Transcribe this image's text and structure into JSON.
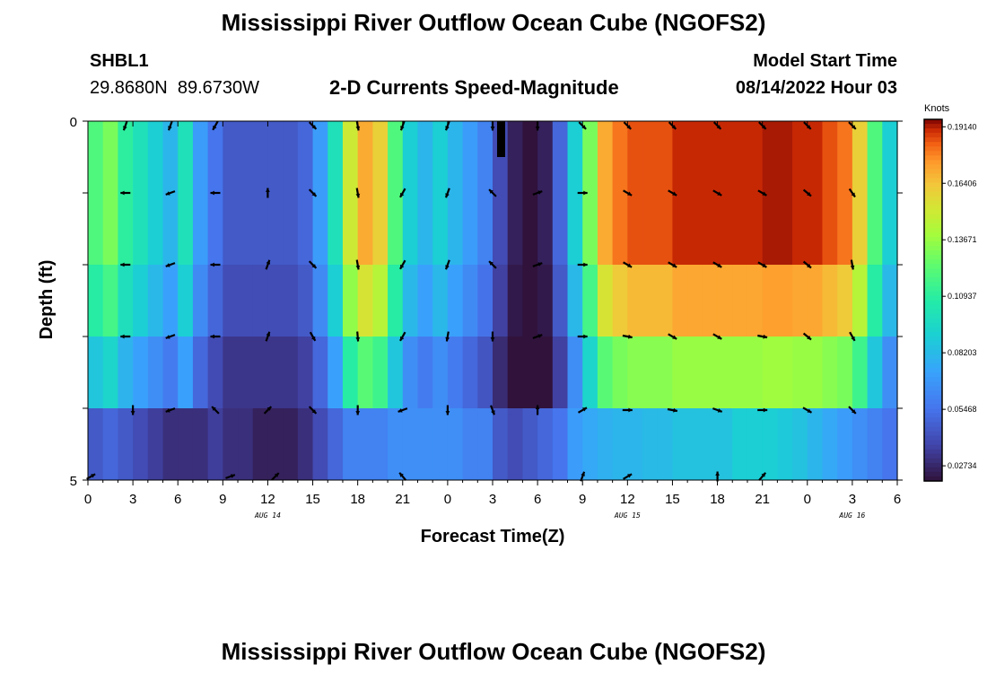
{
  "header": {
    "title": "Mississippi River Outflow Ocean Cube (NGOFS2)",
    "station_id": "SHBL1",
    "station_coords": "29.8680N  89.6730W",
    "subtitle": "2-D Currents Speed-Magnitude",
    "model_start_label": "Model Start Time",
    "model_start_value": "08/14/2022 Hour 03"
  },
  "footer": {
    "title_repeat": "Mississippi River Outflow Ocean Cube (NGOFS2)"
  },
  "chart_data": {
    "type": "heatmap",
    "title": "2-D Currents Speed-Magnitude",
    "xlabel": "Forecast Time(Z)",
    "ylabel": "Depth (ft)",
    "x_tick_labels": [
      "0",
      "3",
      "6",
      "9",
      "12",
      "15",
      "18",
      "21",
      "0",
      "3",
      "6",
      "9",
      "12",
      "15",
      "18",
      "21",
      "0",
      "3",
      "6"
    ],
    "x_range_hours": [
      0,
      54
    ],
    "date_labels": [
      {
        "text": "AUG 14",
        "hour": 12
      },
      {
        "text": "AUG 15",
        "hour": 36
      },
      {
        "text": "AUG 16",
        "hour": 51
      }
    ],
    "y_tick_labels": [
      "0",
      "5"
    ],
    "y_range": [
      0,
      5
    ],
    "layers": 5,
    "colorbar": {
      "unit": "Knots",
      "min": 0.02,
      "max": 0.195,
      "tick_labels": [
        "0.19140",
        "0.16406",
        "0.13671",
        "0.10937",
        "0.08203",
        "0.05468",
        "0.02734"
      ],
      "tick_values": [
        0.1914,
        0.16406,
        0.13671,
        0.10937,
        0.08203,
        0.05468,
        0.02734
      ]
    },
    "speed_profile": {
      "hours": [
        0,
        1,
        2,
        3,
        4,
        5,
        6,
        7,
        8,
        9,
        10,
        11,
        12,
        13,
        14,
        15,
        16,
        17,
        18,
        19,
        20,
        21,
        22,
        23,
        24,
        25,
        26,
        27,
        28,
        29,
        30,
        31,
        32,
        33,
        34,
        35,
        36,
        37,
        38,
        39,
        40,
        41,
        42,
        43,
        44,
        45,
        46,
        47,
        48,
        49,
        50,
        51,
        52,
        53,
        54
      ],
      "top": [
        0.12,
        0.13,
        0.11,
        0.1,
        0.09,
        0.08,
        0.1,
        0.07,
        0.055,
        0.045,
        0.045,
        0.045,
        0.045,
        0.045,
        0.05,
        0.07,
        0.1,
        0.15,
        0.17,
        0.16,
        0.12,
        0.09,
        0.08,
        0.09,
        0.08,
        0.07,
        0.06,
        0.04,
        0.025,
        0.02,
        0.025,
        0.05,
        0.09,
        0.13,
        0.17,
        0.18,
        0.185,
        0.185,
        0.185,
        0.19,
        0.19,
        0.19,
        0.19,
        0.19,
        0.19,
        0.192,
        0.192,
        0.19,
        0.19,
        0.185,
        0.18,
        0.16,
        0.12,
        0.09,
        0.08
      ],
      "layer_factor": [
        1.0,
        1.0,
        0.9,
        0.72,
        0.55
      ]
    },
    "vectors": {
      "rows": [
        {
          "hours": [
            2.5,
            5.5,
            8.5,
            15,
            18,
            21,
            24,
            27,
            30,
            33,
            36,
            39,
            42,
            45,
            48,
            51
          ],
          "dirs_deg": [
            200,
            200,
            210,
            135,
            170,
            200,
            200,
            180,
            180,
            135,
            135,
            135,
            135,
            135,
            135,
            135
          ]
        },
        {
          "hours": [
            2.5,
            5.5,
            8.5,
            12,
            15,
            18,
            21,
            24,
            27,
            30,
            33,
            36,
            39,
            42,
            45,
            48,
            51
          ],
          "dirs_deg": [
            270,
            250,
            270,
            0,
            135,
            170,
            210,
            200,
            315,
            70,
            90,
            120,
            120,
            120,
            120,
            130,
            145
          ]
        },
        {
          "hours": [
            2.5,
            5.5,
            8.5,
            12,
            15,
            18,
            21,
            24,
            27,
            30,
            33,
            36,
            39,
            42,
            45,
            48,
            51
          ],
          "dirs_deg": [
            270,
            250,
            270,
            20,
            135,
            170,
            210,
            200,
            315,
            70,
            90,
            120,
            120,
            120,
            120,
            130,
            170
          ]
        },
        {
          "hours": [
            2.5,
            5.5,
            8.5,
            12,
            15,
            18,
            21,
            24,
            27,
            30,
            33,
            36,
            39,
            42,
            45,
            48,
            51
          ],
          "dirs_deg": [
            270,
            250,
            270,
            20,
            150,
            175,
            210,
            190,
            180,
            70,
            90,
            100,
            120,
            120,
            100,
            130,
            150
          ]
        },
        {
          "hours": [
            3,
            5.5,
            8.5,
            12,
            15,
            18,
            21,
            24,
            27,
            30,
            33,
            36,
            39,
            42,
            45,
            48,
            51
          ],
          "dirs_deg": [
            180,
            250,
            315,
            45,
            135,
            180,
            250,
            180,
            160,
            0,
            60,
            90,
            100,
            110,
            90,
            120,
            135
          ]
        },
        {
          "hours": [
            0.2,
            9.5,
            12.5,
            21,
            33,
            36,
            42,
            45
          ],
          "dirs_deg": [
            60,
            70,
            45,
            320,
            20,
            60,
            0,
            40
          ]
        }
      ]
    }
  }
}
